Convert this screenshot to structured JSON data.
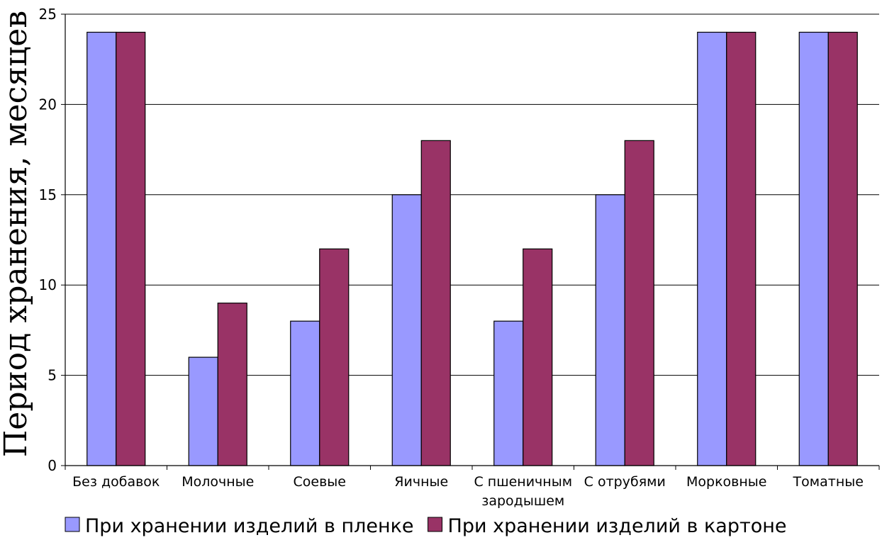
{
  "chart_data": {
    "type": "bar",
    "title": "",
    "xlabel": "",
    "ylabel": "Период хранения, месяцев",
    "ylim": [
      0,
      25
    ],
    "yticks": [
      0,
      5,
      10,
      15,
      20,
      25
    ],
    "grid": true,
    "legend_position": "bottom",
    "categories": [
      [
        "Без добавок"
      ],
      [
        "Молочные"
      ],
      [
        "Соевые"
      ],
      [
        "Яичные"
      ],
      [
        "С пшеничным",
        "зародышем"
      ],
      [
        "С отрубями"
      ],
      [
        "Морковные"
      ],
      [
        "Томатные"
      ]
    ],
    "series": [
      {
        "name": "При хранении изделий в пленке",
        "color": "#9999ff",
        "values": [
          24,
          6,
          8,
          15,
          8,
          15,
          24,
          24
        ]
      },
      {
        "name": "При хранении изделий в картоне",
        "color": "#993366",
        "values": [
          24,
          9,
          12,
          18,
          12,
          18,
          24,
          24
        ]
      }
    ]
  }
}
